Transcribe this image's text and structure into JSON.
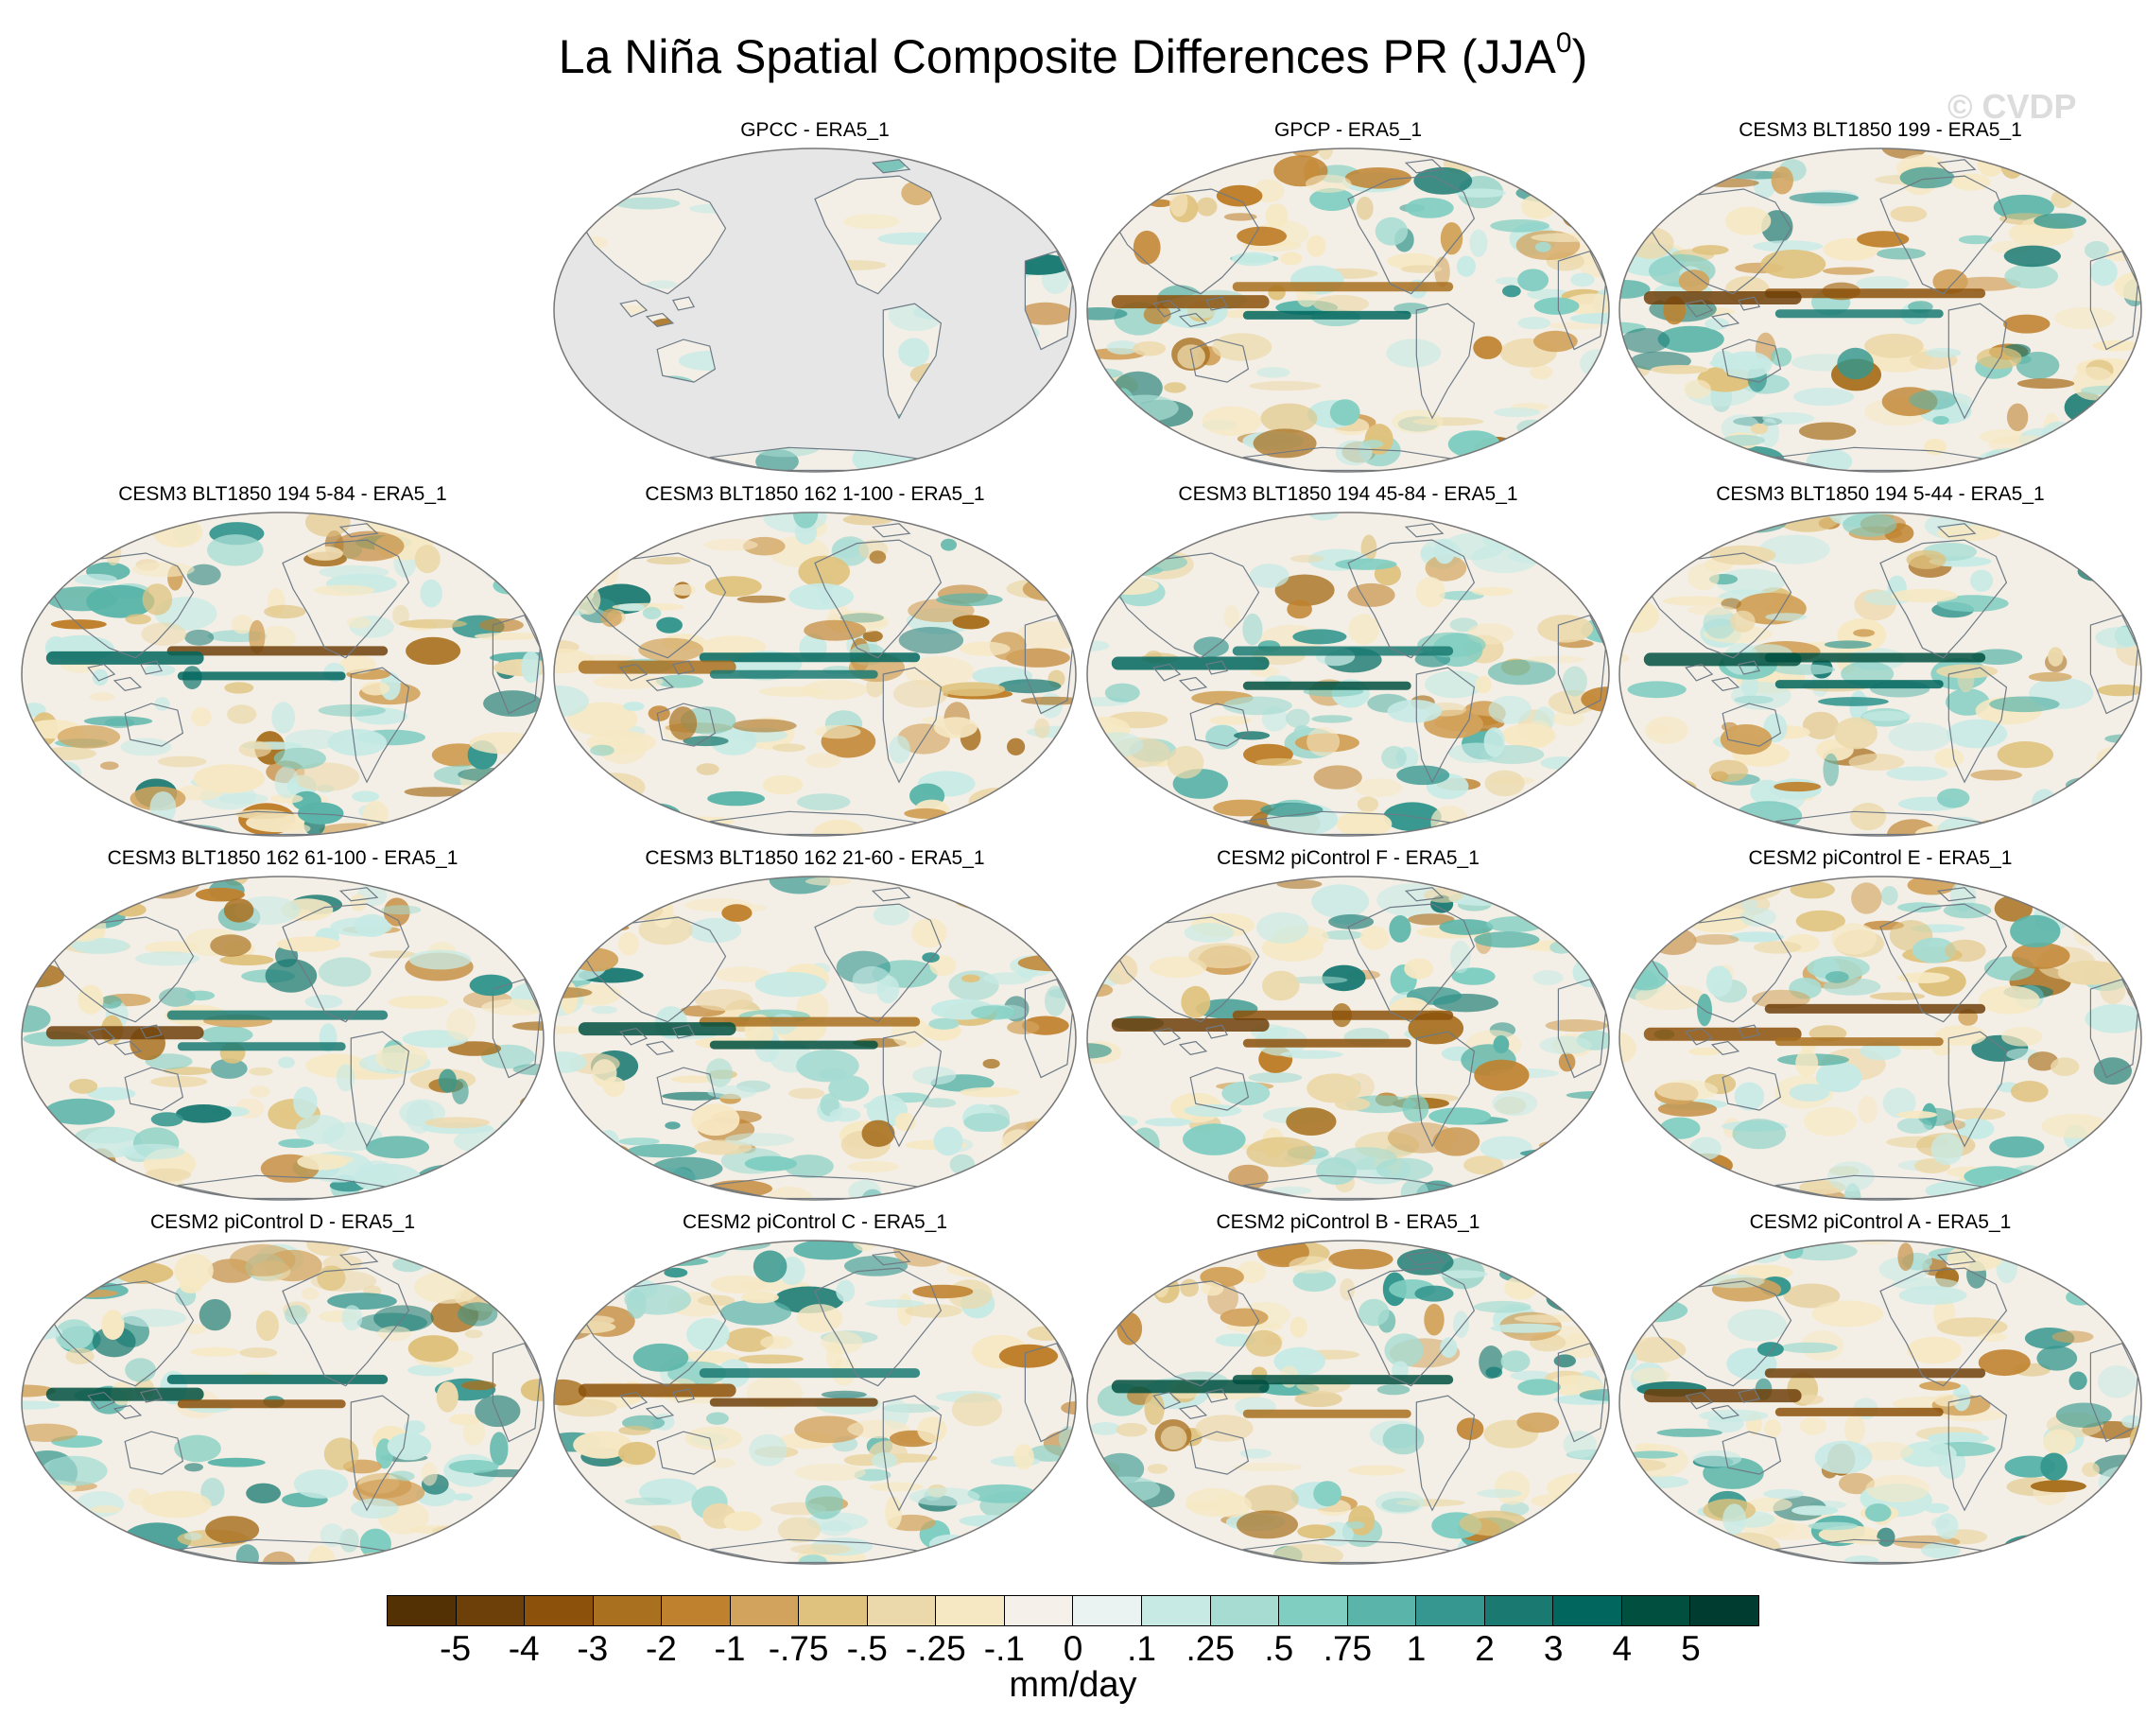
{
  "title": {
    "main": "La Niña Spatial Composite Differences PR (JJA",
    "superscript": "0",
    "close": ")"
  },
  "watermark": "© CVDP",
  "panels": [
    {
      "label": "GPCC - ERA5_1",
      "row": 0,
      "col": 1,
      "land_only": true
    },
    {
      "label": "GPCP - ERA5_1",
      "row": 0,
      "col": 2,
      "land_only": false
    },
    {
      "label": "CESM3 BLT1850 199 - ERA5_1",
      "row": 0,
      "col": 3,
      "land_only": false
    },
    {
      "label": "CESM3 BLT1850 194 5-84 - ERA5_1",
      "row": 1,
      "col": 0,
      "land_only": false
    },
    {
      "label": "CESM3 BLT1850 162 1-100 - ERA5_1",
      "row": 1,
      "col": 1,
      "land_only": false
    },
    {
      "label": "CESM3 BLT1850 194 45-84 - ERA5_1",
      "row": 1,
      "col": 2,
      "land_only": false
    },
    {
      "label": "CESM3 BLT1850 194 5-44 - ERA5_1",
      "row": 1,
      "col": 3,
      "land_only": false
    },
    {
      "label": "CESM3 BLT1850 162 61-100 - ERA5_1",
      "row": 2,
      "col": 0,
      "land_only": false
    },
    {
      "label": "CESM3 BLT1850 162 21-60 - ERA5_1",
      "row": 2,
      "col": 1,
      "land_only": false
    },
    {
      "label": "CESM2 piControl F - ERA5_1",
      "row": 2,
      "col": 2,
      "land_only": false
    },
    {
      "label": "CESM2 piControl E - ERA5_1",
      "row": 2,
      "col": 3,
      "land_only": false
    },
    {
      "label": "CESM2 piControl D - ERA5_1",
      "row": 3,
      "col": 0,
      "land_only": false
    },
    {
      "label": "CESM2 piControl C - ERA5_1",
      "row": 3,
      "col": 1,
      "land_only": false
    },
    {
      "label": "CESM2 piControl B - ERA5_1",
      "row": 3,
      "col": 2,
      "land_only": false
    },
    {
      "label": "CESM2 piControl A - ERA5_1",
      "row": 3,
      "col": 3,
      "land_only": false
    }
  ],
  "colorbar": {
    "units": "mm/day",
    "ticks": [
      "-5",
      "-4",
      "-3",
      "-2",
      "-1",
      "-.75",
      "-.5",
      "-.25",
      "-.1",
      "0",
      ".1",
      ".25",
      ".5",
      ".75",
      "1",
      "2",
      "3",
      "4",
      "5"
    ],
    "colors": [
      "#543005",
      "#6e4009",
      "#8c510a",
      "#a8701f",
      "#bf812d",
      "#d2a35c",
      "#dfc27d",
      "#ecd9ab",
      "#f6e8c3",
      "#f5f1ea",
      "#eaf3f1",
      "#c7eae5",
      "#a7dcd3",
      "#80cdc1",
      "#5ab4a9",
      "#35978f",
      "#1a7a72",
      "#01665e",
      "#01503f",
      "#003c30"
    ]
  },
  "map_colors": {
    "ocean_background": "#f4efe6",
    "land_gray": "#e6e6e6",
    "coastline": "#6e7a85",
    "frame": "#777777"
  }
}
